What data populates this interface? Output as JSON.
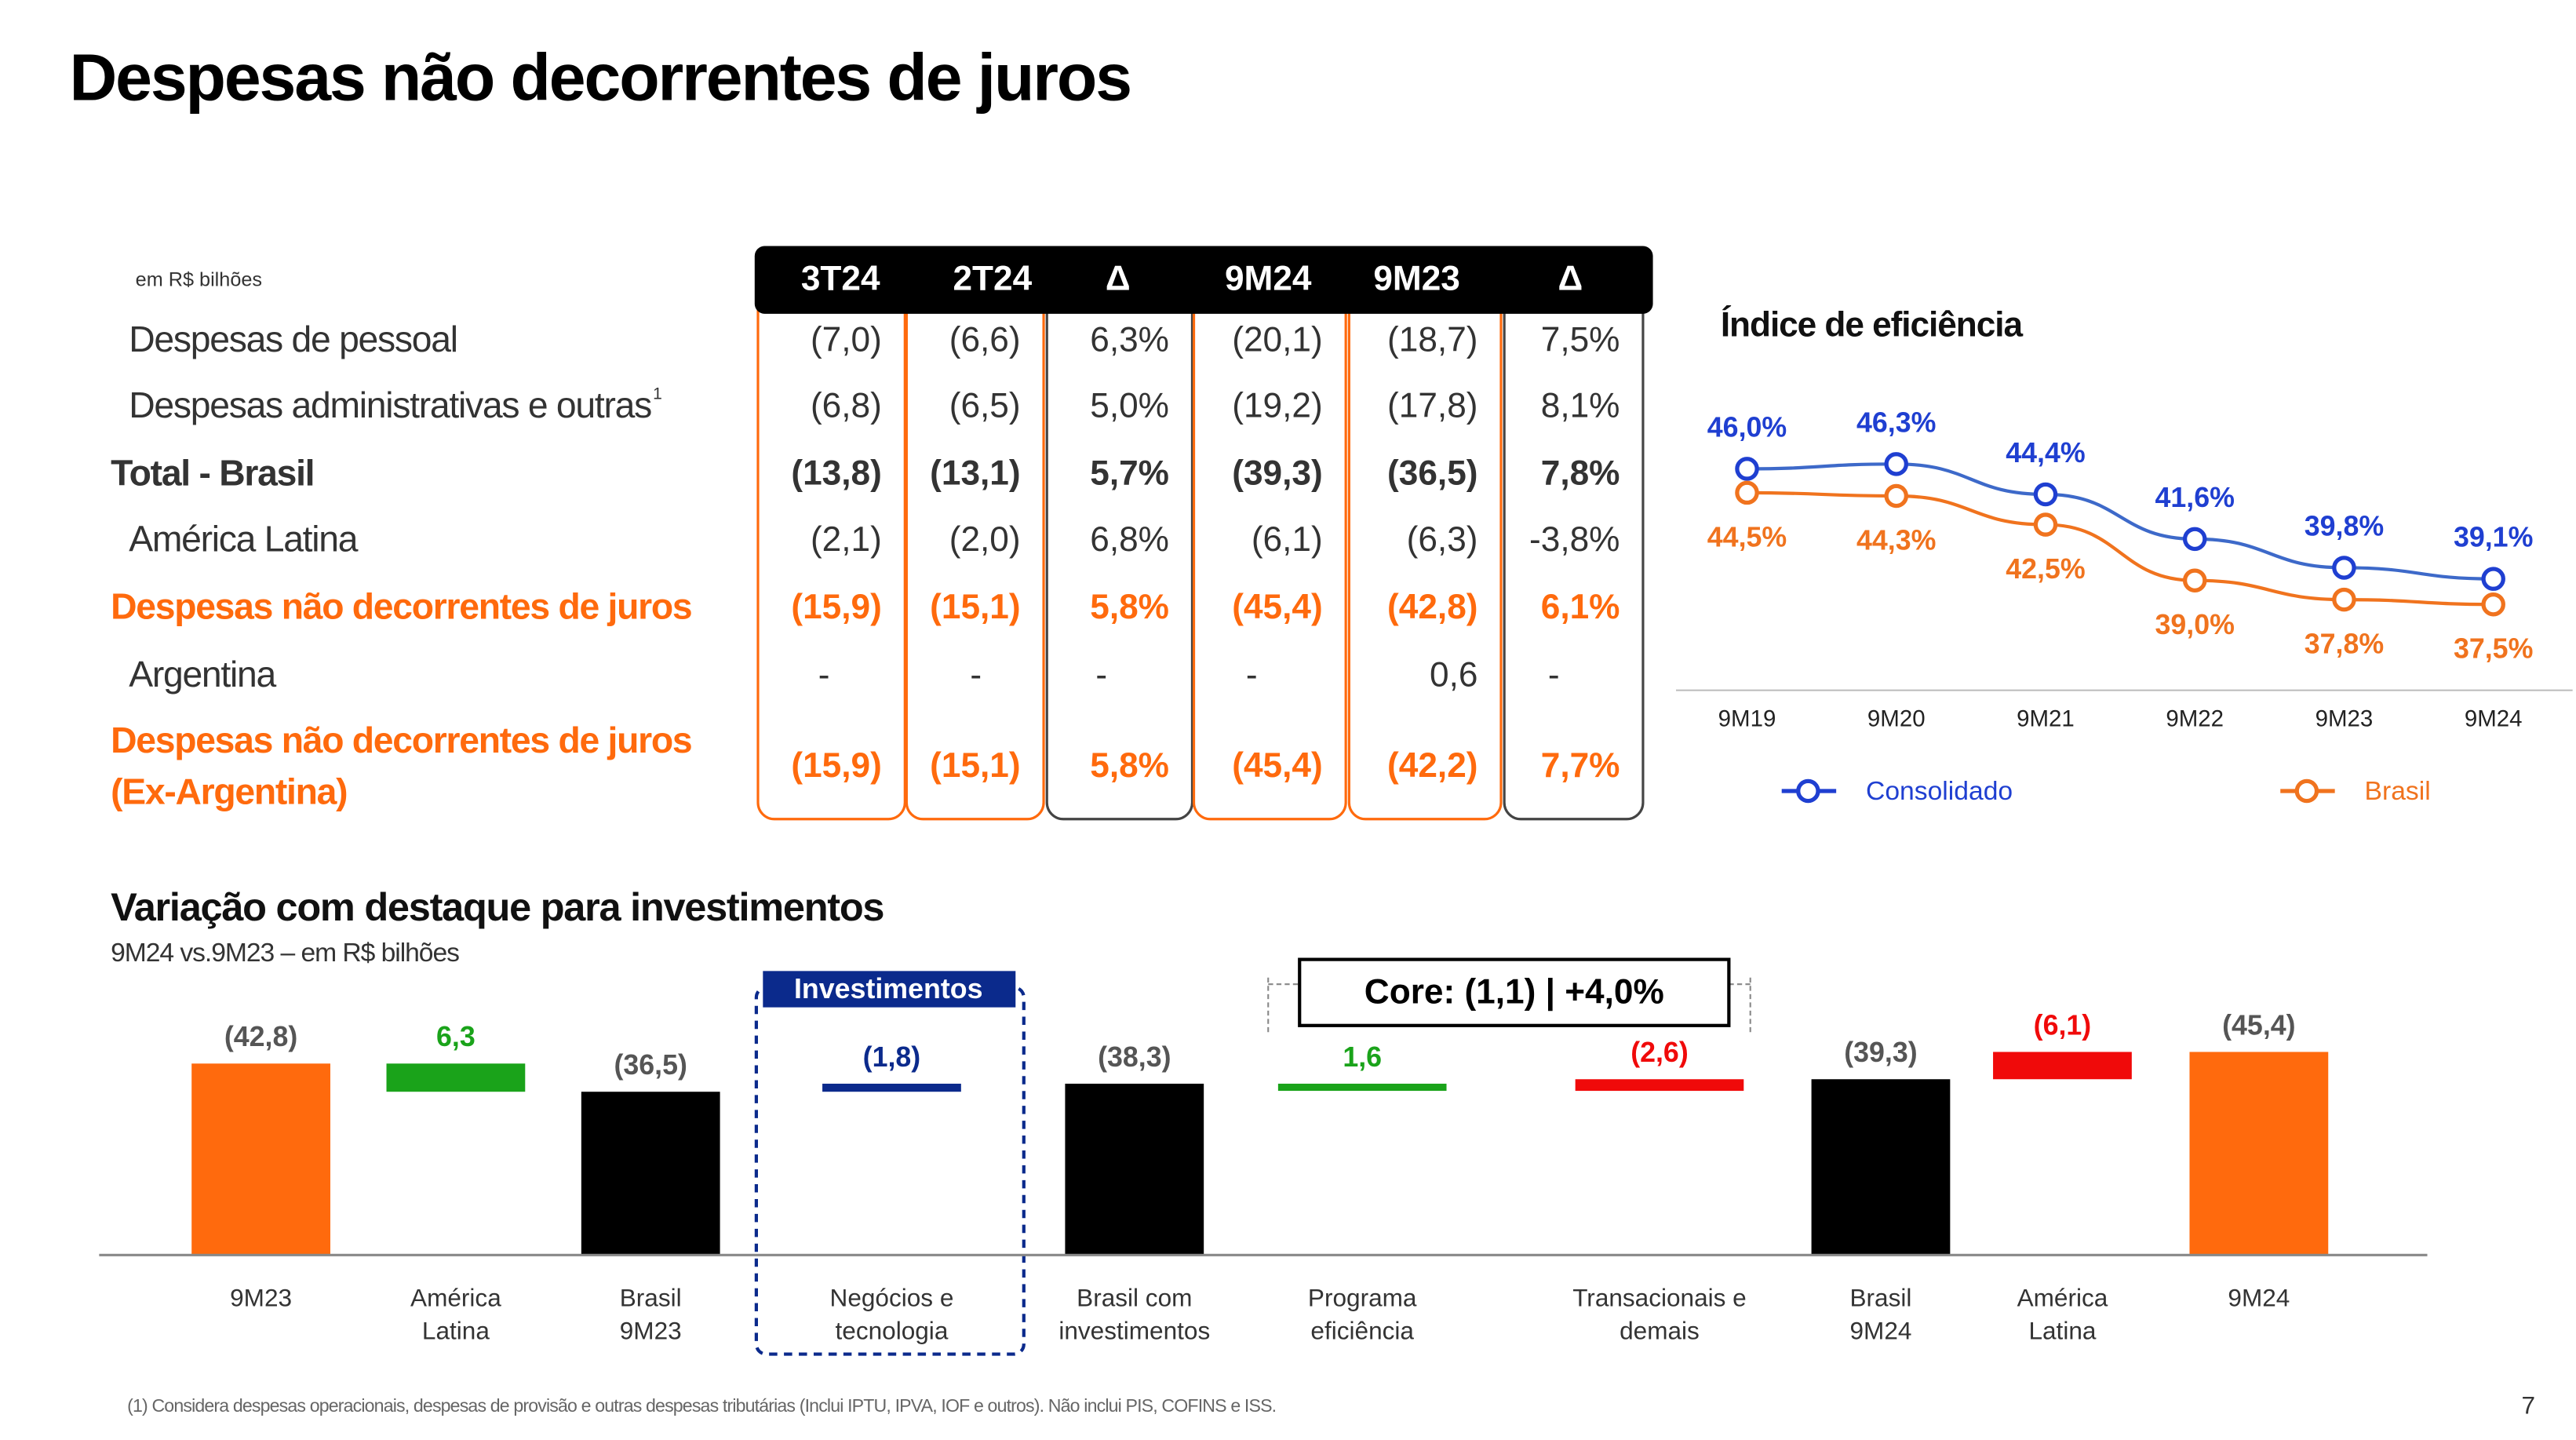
{
  "title": "Despesas não decorrentes de juros",
  "table": {
    "unit": "em R$ bilhões",
    "headers": [
      "3T24",
      "2T24",
      "Δ",
      "9M24",
      "9M23",
      "Δ"
    ],
    "rows": [
      {
        "label": [
          "Despesas de pessoal"
        ],
        "cells": [
          "(7,0)",
          "(6,6)",
          "6,3%",
          "(20,1)",
          "(18,7)",
          "7,5%"
        ]
      },
      {
        "label": [
          "Despesas administrativas e outras"
        ],
        "note": "1",
        "cells": [
          "(6,8)",
          "(6,5)",
          "5,0%",
          "(19,2)",
          "(17,8)",
          "8,1%"
        ]
      },
      {
        "label": [
          "Total - Brasil"
        ],
        "cells": [
          "(13,8)",
          "(13,1)",
          "5,7%",
          "(39,3)",
          "(36,5)",
          "7,8%"
        ]
      },
      {
        "label": [
          "América Latina"
        ],
        "cells": [
          "(2,1)",
          "(2,0)",
          "6,8%",
          "(6,1)",
          "(6,3)",
          "-3,8%"
        ]
      },
      {
        "label": [
          "Despesas não decorrentes de juros"
        ],
        "cells": [
          "(15,9)",
          "(15,1)",
          "5,8%",
          "(45,4)",
          "(42,8)",
          "6,1%"
        ]
      },
      {
        "label": [
          "Argentina"
        ],
        "cells": [
          "-",
          "-",
          "-",
          "-",
          "0,6",
          "-"
        ]
      },
      {
        "label": [
          "Despesas não decorrentes de juros",
          "(Ex-Argentina)"
        ],
        "cells": [
          "(15,9)",
          "(15,1)",
          "5,8%",
          "(45,4)",
          "(42,2)",
          "7,7%"
        ]
      }
    ]
  },
  "chart_data": [
    {
      "type": "line",
      "title": "Índice de eficiência",
      "categories": [
        "9M19",
        "9M20",
        "9M21",
        "9M22",
        "9M23",
        "9M24"
      ],
      "series": [
        {
          "name": "Consolidado",
          "color": "#1f3fd1",
          "values": [
            46.0,
            46.3,
            44.4,
            41.6,
            39.8,
            39.1
          ],
          "value_labels": [
            "46,0%",
            "46,3%",
            "44,4%",
            "41,6%",
            "39,8%",
            "39,1%"
          ]
        },
        {
          "name": "Brasil",
          "color": "#f0731e",
          "values": [
            44.5,
            44.3,
            42.5,
            39.0,
            37.8,
            37.5
          ],
          "value_labels": [
            "44,5%",
            "44,3%",
            "42,5%",
            "39,0%",
            "37,8%",
            "37,5%"
          ]
        }
      ]
    },
    {
      "type": "waterfall",
      "title": "Variação com destaque para investimentos",
      "subtitle": "9M24 vs.9M23 – em R$ bilhões",
      "categories": [
        [
          "9M23"
        ],
        [
          "América",
          "Latina"
        ],
        [
          "Brasil",
          "9M23"
        ],
        [
          "Negócios e",
          "tecnologia"
        ],
        [
          "Brasil com",
          "investimentos"
        ],
        [
          "Programa",
          "eficiência"
        ],
        [
          "Transacionais e",
          "demais"
        ],
        [
          "Brasil",
          "9M24"
        ],
        [
          "América",
          "Latina"
        ],
        [
          "9M24"
        ]
      ],
      "values": [
        -42.8,
        6.3,
        -36.5,
        -1.8,
        -38.3,
        1.6,
        -2.6,
        -39.3,
        -6.1,
        -45.4
      ],
      "value_labels": [
        "(42,8)",
        "6,3",
        "(36,5)",
        "(1,8)",
        "(38,3)",
        "1,6",
        "(2,6)",
        "(39,3)",
        "(6,1)",
        "(45,4)"
      ],
      "measure": [
        "total",
        "relative",
        "total",
        "relative",
        "total",
        "relative",
        "relative",
        "total",
        "relative",
        "total"
      ],
      "colors": [
        "#ff6a0d",
        "#1aa31a",
        "#000000",
        "#0b2a8c",
        "#000000",
        "#1aa31a",
        "#f00a0a",
        "#000000",
        "#f00a0a",
        "#ff6a0d"
      ],
      "annotations": [
        "Investimentos",
        "Core: (1,1) | +4,0%"
      ]
    }
  ],
  "footnote": "(1) Considera despesas operacionais, despesas de provisão e outras despesas tributárias (Inclui IPTU, IPVA, IOF e outros). Não inclui PIS, COFINS e ISS.",
  "page_number": "7"
}
